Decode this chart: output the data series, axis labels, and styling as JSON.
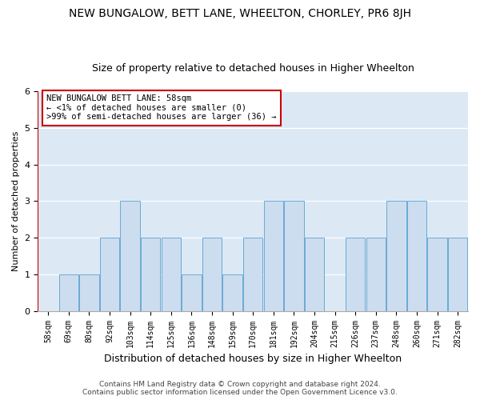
{
  "title": "NEW BUNGALOW, BETT LANE, WHEELTON, CHORLEY, PR6 8JH",
  "subtitle": "Size of property relative to detached houses in Higher Wheelton",
  "xlabel": "Distribution of detached houses by size in Higher Wheelton",
  "ylabel": "Number of detached properties",
  "footer1": "Contains HM Land Registry data © Crown copyright and database right 2024.",
  "footer2": "Contains public sector information licensed under the Open Government Licence v3.0.",
  "categories": [
    "58sqm",
    "69sqm",
    "80sqm",
    "92sqm",
    "103sqm",
    "114sqm",
    "125sqm",
    "136sqm",
    "148sqm",
    "159sqm",
    "170sqm",
    "181sqm",
    "192sqm",
    "204sqm",
    "215sqm",
    "226sqm",
    "237sqm",
    "248sqm",
    "260sqm",
    "271sqm",
    "282sqm"
  ],
  "values": [
    0,
    1,
    1,
    2,
    3,
    2,
    2,
    1,
    2,
    1,
    2,
    3,
    3,
    2,
    0,
    2,
    2,
    3,
    3,
    2,
    2
  ],
  "bar_color": "#ccddf0",
  "bar_edge_color": "#6aaad4",
  "highlight_color": "#cc0000",
  "ylim": [
    0,
    6
  ],
  "yticks": [
    0,
    1,
    2,
    3,
    4,
    5,
    6
  ],
  "annotation_title": "NEW BUNGALOW BETT LANE: 58sqm",
  "annotation_line1": "← <1% of detached houses are smaller (0)",
  "annotation_line2": ">99% of semi-detached houses are larger (36) →",
  "bg_color": "#dce9f5",
  "title_fontsize": 10,
  "subtitle_fontsize": 9,
  "xlabel_fontsize": 9,
  "ylabel_fontsize": 8,
  "tick_fontsize": 7,
  "annotation_fontsize": 7.5,
  "footer_fontsize": 6.5
}
